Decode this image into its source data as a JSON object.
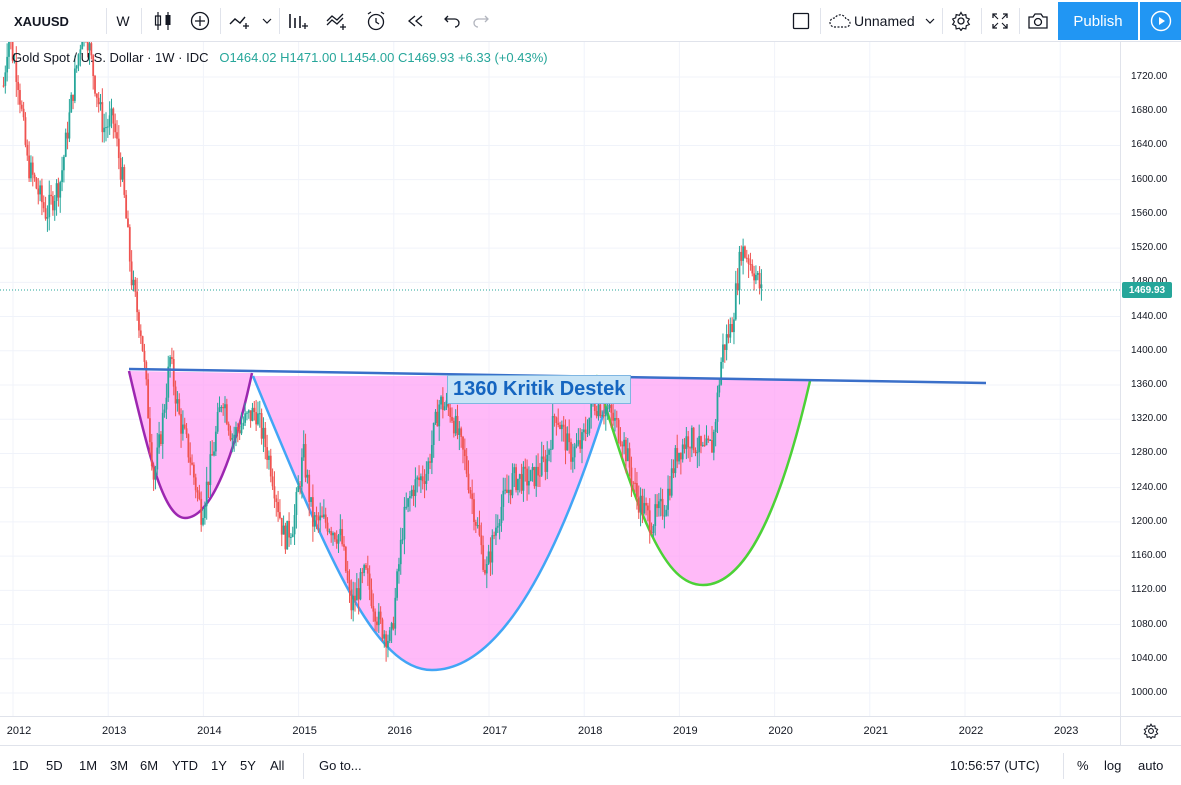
{
  "toolbar": {
    "symbol": "XAUUSD",
    "interval": "W",
    "layout_name": "Unnamed",
    "publish_label": "Publish"
  },
  "legend": {
    "title": "Gold Spot / U.S. Dollar · 1W · IDC",
    "open": "O1464.02",
    "high": "H1471.00",
    "low": "L1454.00",
    "close": "C1469.93",
    "change": "+6.33 (+0.43%)"
  },
  "price_axis": {
    "labels": [
      "1720.00",
      "1680.00",
      "1640.00",
      "1600.00",
      "1560.00",
      "1520.00",
      "1480.00",
      "1440.00",
      "1400.00",
      "1360.00",
      "1320.00",
      "1280.00",
      "1240.00",
      "1200.00",
      "1160.00",
      "1120.00",
      "1080.00",
      "1040.00",
      "1000.00"
    ],
    "current_price": "1469.93"
  },
  "time_axis": {
    "labels": [
      "2012",
      "2013",
      "2014",
      "2015",
      "2016",
      "2017",
      "2018",
      "2019",
      "2020",
      "2021",
      "2022",
      "2023"
    ]
  },
  "annotation": {
    "text": "1360 Kritik Destek"
  },
  "bottom_bar": {
    "ranges": [
      "1D",
      "5D",
      "1M",
      "3M",
      "6M",
      "YTD",
      "1Y",
      "5Y",
      "All"
    ],
    "goto_label": "Go to...",
    "clock": "10:56:57 (UTC)",
    "percent_label": "%",
    "log_label": "log",
    "auto_label": "auto"
  },
  "colors": {
    "up": "#26a69a",
    "down": "#ef5350",
    "accent": "#2196f3",
    "fill": "#ff9cf5"
  }
}
